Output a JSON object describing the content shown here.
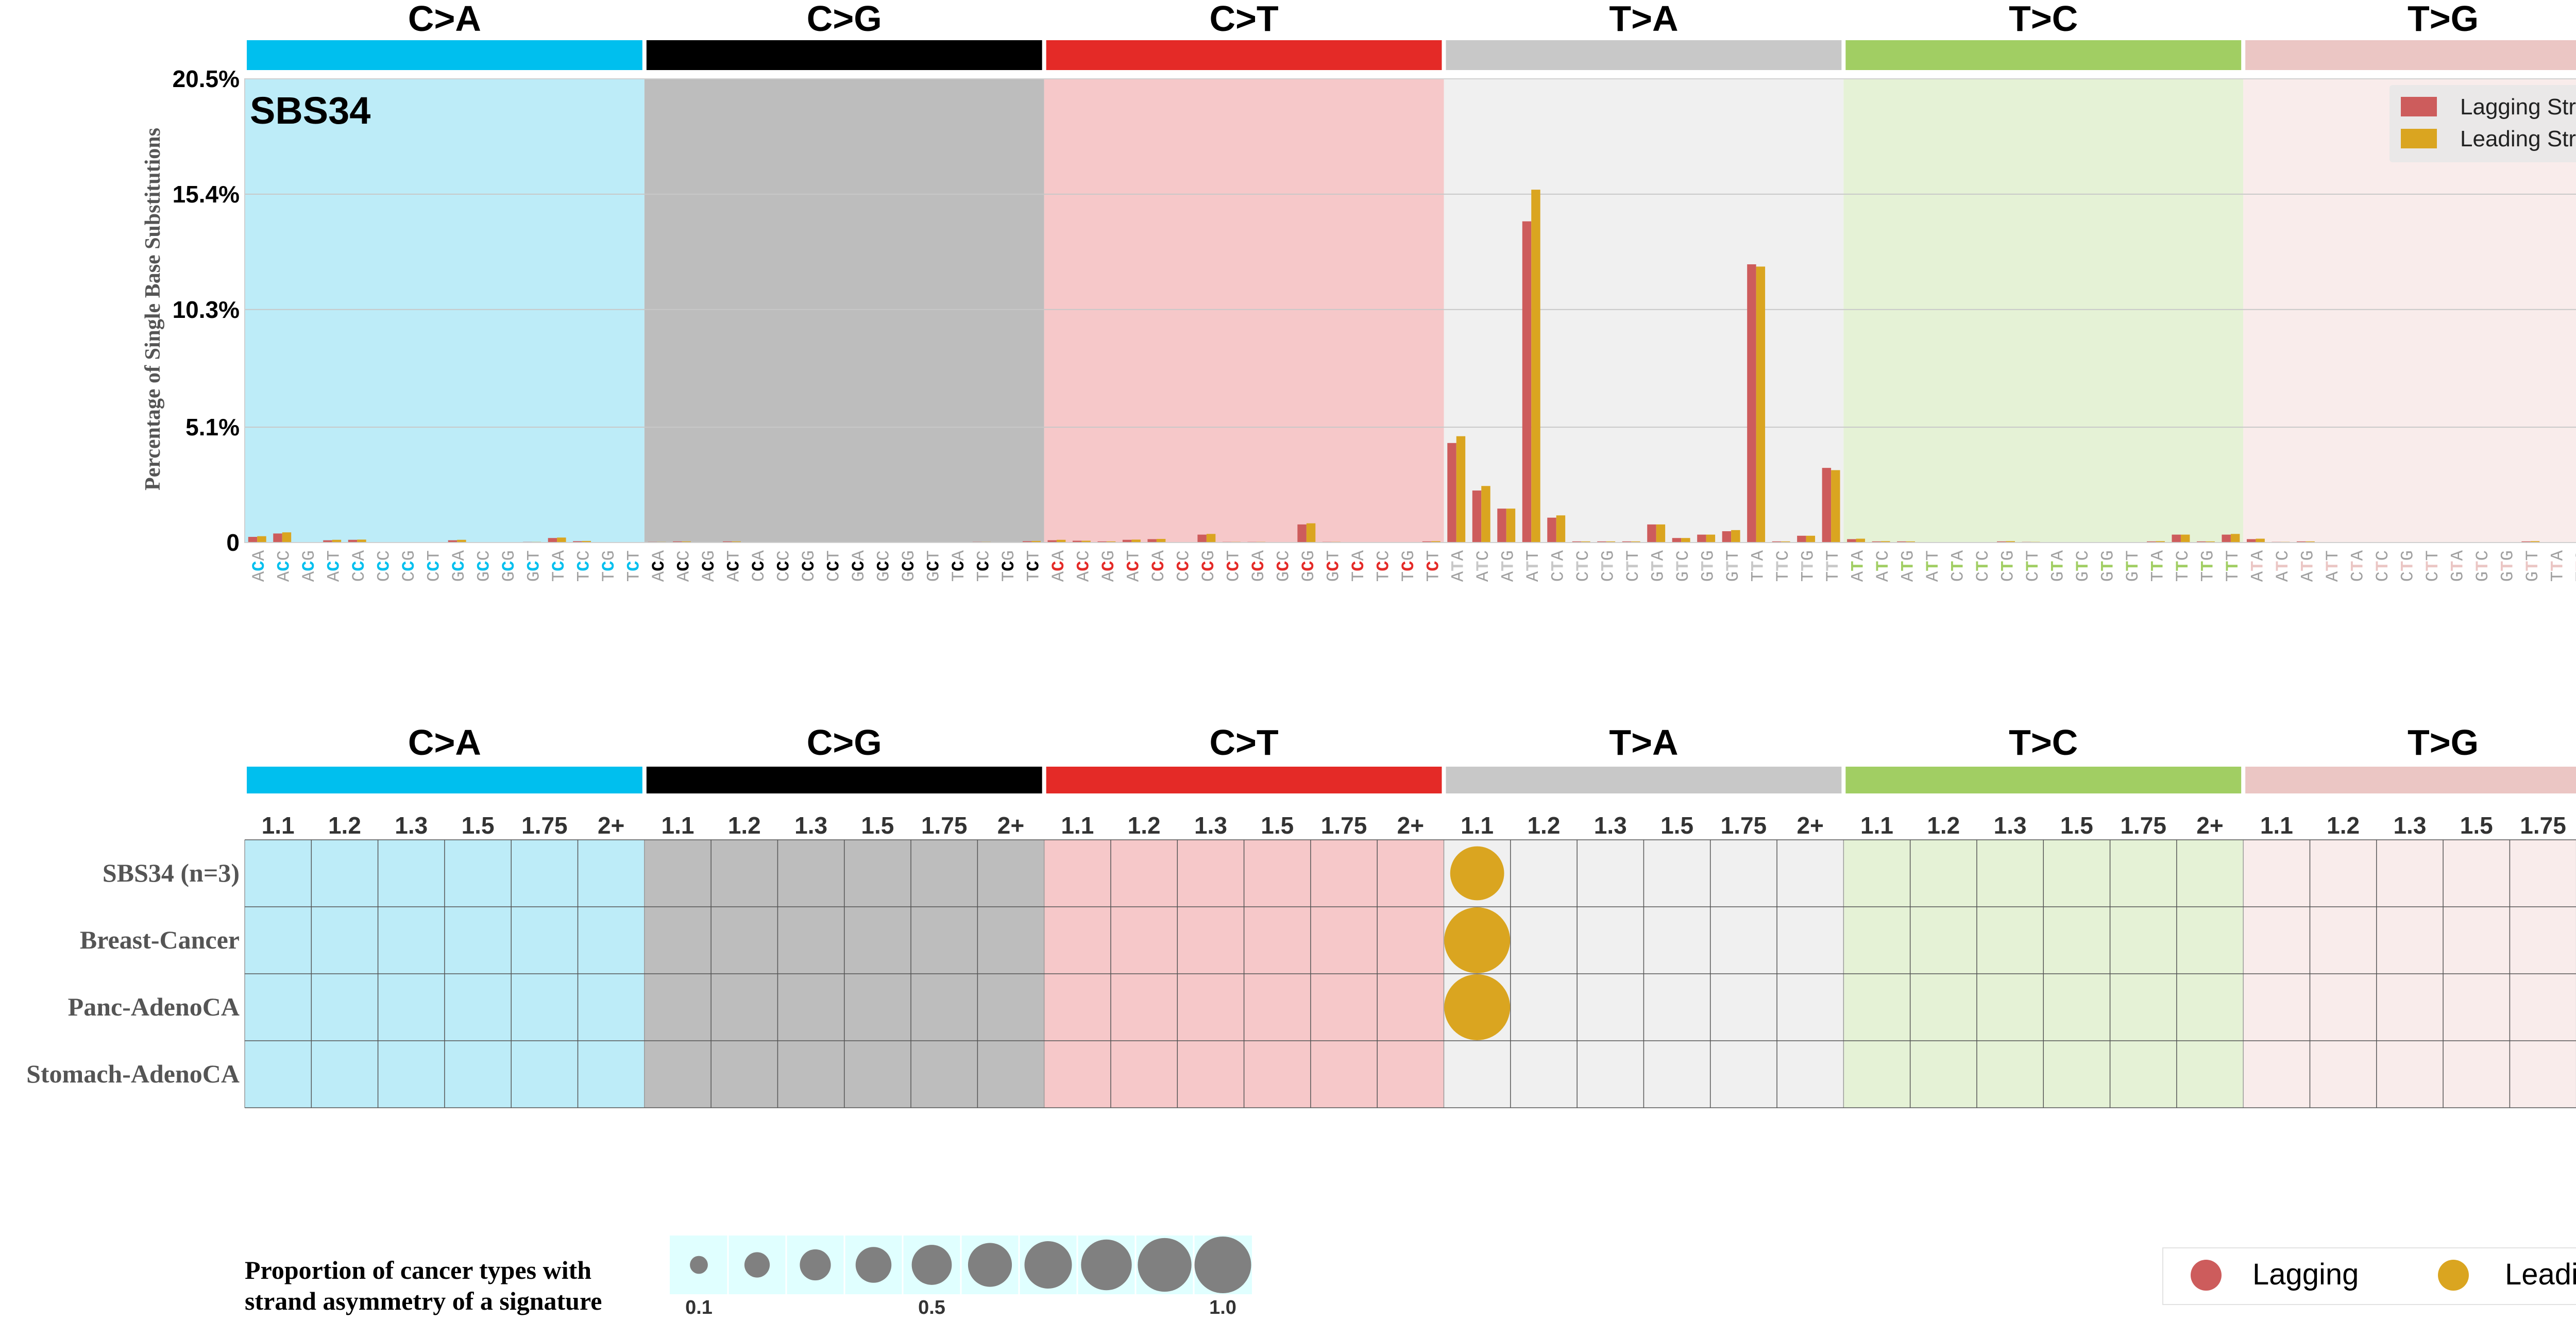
{
  "top_panel": {
    "signature_label": "SBS34",
    "ylabel": "Percentage of Single Base Substitutions",
    "y_tick_labels": [
      "0",
      "5.1%",
      "10.3%",
      "15.4%",
      "20.5%"
    ],
    "legend": {
      "lagging": "Lagging Strand",
      "leading": "Leading Strand"
    }
  },
  "bottom_panel": {
    "row_labels": [
      "SBS34 (n=3)",
      "Breast-Cancer",
      "Panc-AdenoCA",
      "Stomach-AdenoCA"
    ],
    "column_labels": [
      "1.1",
      "1.2",
      "1.3",
      "1.5",
      "1.75",
      "2+"
    ]
  },
  "size_legend": {
    "title_line1": "Proportion of cancer types with",
    "title_line2": "strand asymmetry of a signature",
    "tick_labels": [
      "0.1",
      "0.5",
      "1.0"
    ]
  },
  "color_legend": {
    "lagging": "Lagging",
    "leading": "Leading"
  },
  "colors": {
    "lagging": "#CD5C5C",
    "leading": "#DAA520",
    "bubble_scale": "#808080",
    "mutation_types": {
      "C>A": "#00BFEE",
      "C>G": "#000000",
      "C>T": "#E42A27",
      "T>A": "#C8C8C8",
      "T>C": "#A1CE63",
      "T>G": "#EBC6C4"
    },
    "panel_backgrounds": {
      "C>A": "#BDECF8",
      "C>G": "#BDBDBD",
      "C>T": "#F6C8C9",
      "T>A": "#F0F0F0",
      "T>C": "#E5F2D6",
      "T>G": "#F9ECEB"
    }
  },
  "chart_data": [
    {
      "type": "bar",
      "title": "SBS34",
      "ylabel": "Percentage of Single Base Substitutions",
      "ylim": [
        0,
        20.5
      ],
      "y_ticks": [
        0,
        5.1,
        10.3,
        15.4,
        20.5
      ],
      "grid": true,
      "legend_position": "top-right",
      "mutation_types": [
        "C>A",
        "C>G",
        "C>T",
        "T>A",
        "T>C",
        "T>G"
      ],
      "contexts": [
        "ACA",
        "ACC",
        "ACG",
        "ACT",
        "CCA",
        "CCC",
        "CCG",
        "CCT",
        "GCA",
        "GCC",
        "GCG",
        "GCT",
        "TCA",
        "TCC",
        "TCG",
        "TCT"
      ],
      "contexts_T": [
        "ATA",
        "ATC",
        "ATG",
        "ATT",
        "CTA",
        "CTC",
        "CTG",
        "CTT",
        "GTA",
        "GTC",
        "GTG",
        "GTT",
        "TTA",
        "TTC",
        "TTG",
        "TTT"
      ],
      "series": [
        {
          "name": "Lagging Strand",
          "values": [
            0.25,
            0.4,
            0.02,
            0.1,
            0.12,
            0.02,
            0.01,
            0.02,
            0.1,
            0.02,
            0.01,
            0.03,
            0.2,
            0.06,
            0.01,
            0.02,
            0.03,
            0.05,
            0.01,
            0.05,
            0.02,
            0.01,
            0.0,
            0.02,
            0.02,
            0.02,
            0.0,
            0.02,
            0.02,
            0.03,
            0.01,
            0.06,
            0.1,
            0.08,
            0.05,
            0.12,
            0.15,
            0.02,
            0.35,
            0.03,
            0.03,
            0.02,
            0.8,
            0.03,
            0.02,
            0.02,
            0.02,
            0.05,
            4.4,
            2.3,
            1.5,
            14.2,
            1.1,
            0.05,
            0.05,
            0.05,
            0.8,
            0.2,
            0.35,
            0.5,
            12.3,
            0.05,
            0.3,
            3.3,
            0.15,
            0.05,
            0.05,
            0.02,
            0.02,
            0.02,
            0.05,
            0.03,
            0.02,
            0.02,
            0.02,
            0.02,
            0.05,
            0.35,
            0.05,
            0.35,
            0.15,
            0.03,
            0.05,
            0.02,
            0.02,
            0.01,
            0.01,
            0.02,
            0.02,
            0.01,
            0.02,
            0.05,
            0.01,
            0.02,
            0.01,
            0.1
          ]
        },
        {
          "name": "Leading Strand",
          "values": [
            0.28,
            0.45,
            0.02,
            0.12,
            0.13,
            0.02,
            0.01,
            0.02,
            0.12,
            0.02,
            0.01,
            0.03,
            0.22,
            0.07,
            0.01,
            0.02,
            0.03,
            0.05,
            0.01,
            0.05,
            0.02,
            0.01,
            0.0,
            0.02,
            0.02,
            0.02,
            0.0,
            0.02,
            0.02,
            0.03,
            0.01,
            0.07,
            0.12,
            0.08,
            0.05,
            0.13,
            0.16,
            0.02,
            0.38,
            0.03,
            0.03,
            0.02,
            0.85,
            0.03,
            0.02,
            0.02,
            0.02,
            0.06,
            4.7,
            2.5,
            1.5,
            15.6,
            1.2,
            0.05,
            0.05,
            0.05,
            0.8,
            0.2,
            0.35,
            0.55,
            12.2,
            0.05,
            0.3,
            3.2,
            0.17,
            0.06,
            0.05,
            0.02,
            0.02,
            0.02,
            0.06,
            0.03,
            0.02,
            0.02,
            0.02,
            0.02,
            0.06,
            0.35,
            0.05,
            0.38,
            0.17,
            0.03,
            0.05,
            0.02,
            0.02,
            0.01,
            0.01,
            0.02,
            0.02,
            0.01,
            0.02,
            0.06,
            0.01,
            0.02,
            0.01,
            0.12
          ]
        }
      ]
    },
    {
      "type": "scatter",
      "description_kind": "bubble grid",
      "x_categories": [
        "1.1",
        "1.2",
        "1.3",
        "1.5",
        "1.75",
        "2+"
      ],
      "groups": [
        "C>A",
        "C>G",
        "C>T",
        "T>A",
        "T>C",
        "T>G"
      ],
      "rows": [
        "SBS34 (n=3)",
        "Breast-Cancer",
        "Panc-AdenoCA",
        "Stomach-AdenoCA"
      ],
      "points": [
        {
          "row": "SBS34 (n=3)",
          "group": "T>A",
          "column": "1.1",
          "strand": "Leading",
          "proportion": 0.67
        },
        {
          "row": "Breast-Cancer",
          "group": "T>A",
          "column": "1.1",
          "strand": "Leading",
          "proportion": 1.0
        },
        {
          "row": "Panc-AdenoCA",
          "group": "T>A",
          "column": "1.1",
          "strand": "Leading",
          "proportion": 1.0
        }
      ],
      "size_legend_values": [
        0.1,
        0.2,
        0.3,
        0.4,
        0.5,
        0.6,
        0.7,
        0.8,
        0.9,
        1.0
      ]
    }
  ]
}
